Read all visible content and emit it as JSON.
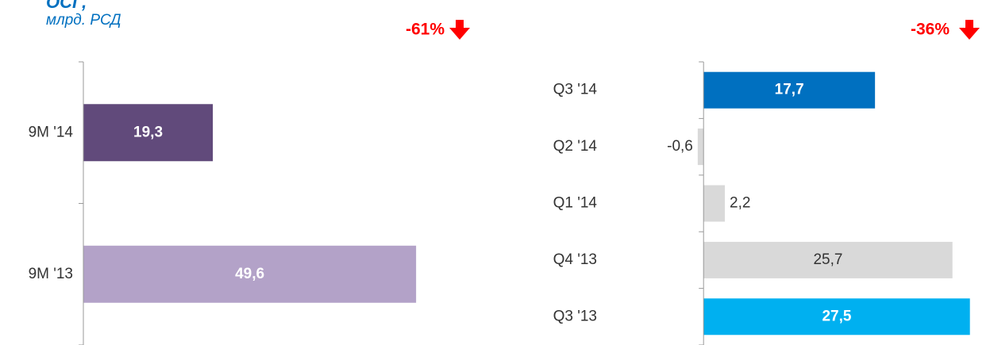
{
  "chart_data": [
    {
      "type": "bar",
      "orientation": "horizontal",
      "title": "ОСГ,",
      "subtitle": "млрд. РСД",
      "annotation": "-61%",
      "categories": [
        "9M '14",
        "9M '13"
      ],
      "values": [
        19.3,
        49.6
      ],
      "value_labels": [
        "19,3",
        "49,6"
      ],
      "colors": [
        "#614a7b",
        "#b3a2c8"
      ],
      "xlim": [
        0,
        60
      ]
    },
    {
      "type": "bar",
      "orientation": "horizontal",
      "annotation": "-36%",
      "categories": [
        "Q3 '14",
        "Q2 '14",
        "Q1 '14",
        "Q4 '13",
        "Q3 '13"
      ],
      "values": [
        17.7,
        -0.6,
        2.2,
        25.7,
        27.5
      ],
      "value_labels": [
        "17,7",
        "-0,6",
        "2,2",
        "25,7",
        "27,5"
      ],
      "colors": [
        "#0070c0",
        "#d9d9d9",
        "#d9d9d9",
        "#d9d9d9",
        "#00b0f0"
      ],
      "xlim": [
        -1,
        29
      ]
    }
  ]
}
